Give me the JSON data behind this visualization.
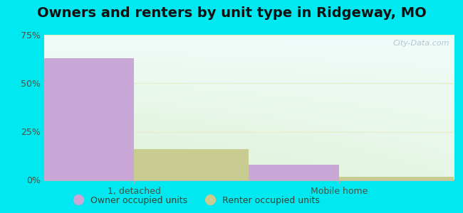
{
  "title": "Owners and renters by unit type in Ridgeway, MO",
  "categories": [
    "1, detached",
    "Mobile home"
  ],
  "owner_values": [
    63.0,
    8.0
  ],
  "renter_values": [
    16.0,
    1.5
  ],
  "owner_color": "#c9a8d8",
  "renter_color": "#c8cc90",
  "ylim": [
    0,
    75
  ],
  "yticks": [
    0,
    25,
    50,
    75
  ],
  "yticklabels": [
    "0%",
    "25%",
    "50%",
    "75%"
  ],
  "background_outer": "#00e8f0",
  "watermark": "City-Data.com",
  "legend_owner": "Owner occupied units",
  "legend_renter": "Renter occupied units",
  "bar_width": 0.28,
  "title_fontsize": 14,
  "grid_color": "#e8eecc",
  "bg_top": "#f0faff",
  "bg_bottom": "#e0f0d0"
}
